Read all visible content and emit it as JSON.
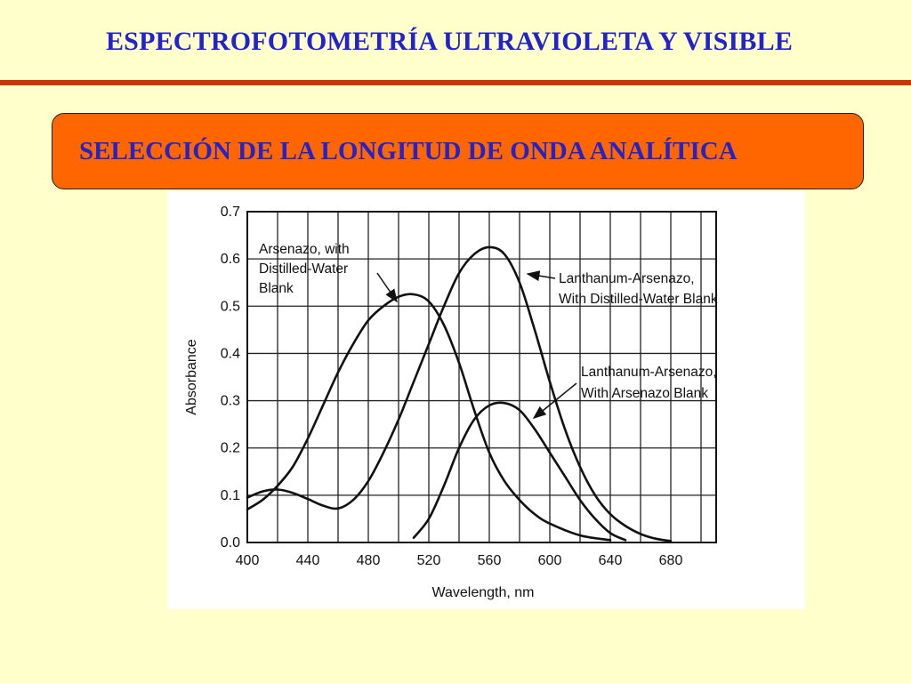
{
  "slide": {
    "title": "ESPECTROFOTOMETRÍA ULTRAVIOLETA Y VISIBLE",
    "subtitle": "SELECCIÓN DE LA LONGITUD DE ONDA ANALÍTICA"
  },
  "colors": {
    "background": "#ffffcc",
    "title_text": "#2323cc",
    "rule": "#cc3300",
    "subtitle_box": "#ff6600"
  },
  "chart_data": {
    "type": "line",
    "xlabel": "Wavelength, nm",
    "ylabel": "Absorbance",
    "xlim": [
      400,
      710
    ],
    "ylim": [
      0,
      0.7
    ],
    "x_ticks": [
      400,
      440,
      480,
      520,
      560,
      600,
      640,
      680
    ],
    "y_ticks": [
      0.0,
      0.1,
      0.2,
      0.3,
      0.4,
      0.5,
      0.6,
      0.7
    ],
    "y_tick_labels": [
      "0.0",
      "0.1",
      "0.2",
      "0.3",
      "0.4",
      "0.5",
      "0.6",
      "0.7"
    ],
    "grid": true,
    "series": [
      {
        "name": "Arsenazo, with Distilled-Water Blank",
        "x": [
          400,
          410,
          420,
          430,
          440,
          450,
          460,
          470,
          480,
          490,
          500,
          510,
          520,
          530,
          540,
          550,
          560,
          570,
          580,
          590,
          600,
          620,
          640
        ],
        "y": [
          0.07,
          0.09,
          0.12,
          0.16,
          0.22,
          0.29,
          0.36,
          0.42,
          0.47,
          0.5,
          0.52,
          0.525,
          0.51,
          0.46,
          0.38,
          0.28,
          0.19,
          0.13,
          0.09,
          0.06,
          0.04,
          0.015,
          0.005
        ]
      },
      {
        "name": "Lanthanum-Arsenazo, With Distilled-Water Blank",
        "x": [
          400,
          410,
          420,
          430,
          440,
          450,
          460,
          470,
          480,
          490,
          500,
          510,
          520,
          530,
          540,
          550,
          560,
          570,
          580,
          590,
          600,
          610,
          620,
          630,
          640,
          650,
          660,
          670,
          680
        ],
        "y": [
          0.095,
          0.108,
          0.112,
          0.105,
          0.092,
          0.078,
          0.072,
          0.09,
          0.13,
          0.19,
          0.26,
          0.34,
          0.42,
          0.5,
          0.57,
          0.61,
          0.625,
          0.61,
          0.55,
          0.45,
          0.34,
          0.24,
          0.16,
          0.1,
          0.06,
          0.035,
          0.018,
          0.008,
          0.003
        ]
      },
      {
        "name": "Lanthanum-Arsenazo, With Arsenazo Blank",
        "x": [
          510,
          520,
          530,
          540,
          550,
          560,
          570,
          580,
          590,
          600,
          610,
          620,
          630,
          640,
          650
        ],
        "y": [
          0.01,
          0.05,
          0.12,
          0.2,
          0.26,
          0.29,
          0.295,
          0.28,
          0.24,
          0.19,
          0.14,
          0.09,
          0.05,
          0.02,
          0.005
        ]
      }
    ],
    "annotations": [
      {
        "lines": [
          "Arsenazo, with",
          "Distilled-Water",
          "Blank"
        ]
      },
      {
        "lines": [
          "Lanthanum-Arsenazo,",
          "With Distilled-Water Blank"
        ]
      },
      {
        "lines": [
          "Lanthanum-Arsenazo,",
          "With Arsenazo Blank"
        ]
      }
    ]
  }
}
